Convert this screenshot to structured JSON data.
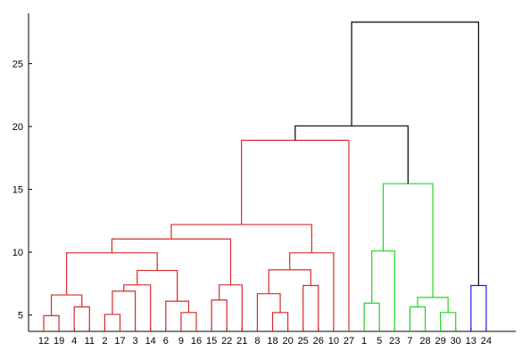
{
  "chart_data": {
    "type": "dendrogram",
    "title": "",
    "xlabel": "",
    "ylabel": "",
    "ylim": [
      3.7,
      29.0
    ],
    "yticks": [
      5,
      10,
      15,
      20,
      25
    ],
    "grid": false,
    "leaf_order": [
      "12",
      "19",
      "4",
      "11",
      "2",
      "17",
      "3",
      "14",
      "6",
      "9",
      "16",
      "15",
      "22",
      "21",
      "8",
      "18",
      "20",
      "25",
      "26",
      "10",
      "27",
      "1",
      "5",
      "23",
      "7",
      "28",
      "29",
      "30",
      "13",
      "24"
    ],
    "cluster_colors": {
      "red": "#d62a2a",
      "green": "#22d622",
      "blue": "#1a1ae0",
      "above_threshold": "#000000"
    },
    "merges": [
      {
        "id": "a",
        "left": "12",
        "right": "19",
        "height": 4.95,
        "color": "red"
      },
      {
        "id": "b",
        "left": "4",
        "right": "11",
        "height": 5.65,
        "color": "red"
      },
      {
        "id": "c",
        "left": "a",
        "right": "b",
        "height": 6.6,
        "color": "red"
      },
      {
        "id": "d",
        "left": "2",
        "right": "17",
        "height": 5.05,
        "color": "red"
      },
      {
        "id": "e",
        "left": "d",
        "right": "3",
        "height": 6.9,
        "color": "red"
      },
      {
        "id": "f",
        "left": "e",
        "right": "14",
        "height": 7.4,
        "color": "red"
      },
      {
        "id": "g",
        "left": "9",
        "right": "16",
        "height": 5.2,
        "color": "red"
      },
      {
        "id": "h",
        "left": "6",
        "right": "g",
        "height": 6.1,
        "color": "red"
      },
      {
        "id": "i",
        "left": "f",
        "right": "h",
        "height": 8.55,
        "color": "red"
      },
      {
        "id": "j",
        "left": "c",
        "right": "i",
        "height": 9.95,
        "color": "red"
      },
      {
        "id": "k",
        "left": "15",
        "right": "22",
        "height": 6.2,
        "color": "red"
      },
      {
        "id": "l",
        "left": "k",
        "right": "21",
        "height": 7.4,
        "color": "red"
      },
      {
        "id": "m",
        "left": "j",
        "right": "l",
        "height": 11.05,
        "color": "red"
      },
      {
        "id": "n",
        "left": "18",
        "right": "20",
        "height": 5.2,
        "color": "red"
      },
      {
        "id": "o",
        "left": "8",
        "right": "n",
        "height": 6.7,
        "color": "red"
      },
      {
        "id": "p",
        "left": "25",
        "right": "26",
        "height": 7.35,
        "color": "red"
      },
      {
        "id": "q",
        "left": "o",
        "right": "p",
        "height": 8.6,
        "color": "red"
      },
      {
        "id": "r",
        "left": "q",
        "right": "10",
        "height": 9.95,
        "color": "red"
      },
      {
        "id": "s",
        "left": "m",
        "right": "r",
        "height": 12.2,
        "color": "red"
      },
      {
        "id": "t",
        "left": "s",
        "right": "27",
        "height": 18.9,
        "color": "red"
      },
      {
        "id": "u",
        "left": "1",
        "right": "5",
        "height": 5.95,
        "color": "green"
      },
      {
        "id": "v",
        "left": "u",
        "right": "23",
        "height": 10.1,
        "color": "green"
      },
      {
        "id": "w",
        "left": "7",
        "right": "28",
        "height": 5.65,
        "color": "green"
      },
      {
        "id": "x",
        "left": "29",
        "right": "30",
        "height": 5.2,
        "color": "green"
      },
      {
        "id": "y",
        "left": "w",
        "right": "x",
        "height": 6.4,
        "color": "green"
      },
      {
        "id": "z",
        "left": "v",
        "right": "y",
        "height": 15.45,
        "color": "green"
      },
      {
        "id": "aa",
        "left": "t",
        "right": "z",
        "height": 20.05,
        "color": "above_threshold"
      },
      {
        "id": "bb",
        "left": "13",
        "right": "24",
        "height": 7.35,
        "color": "blue"
      },
      {
        "id": "cc",
        "left": "aa",
        "right": "bb",
        "height": 28.3,
        "color": "above_threshold"
      }
    ]
  }
}
